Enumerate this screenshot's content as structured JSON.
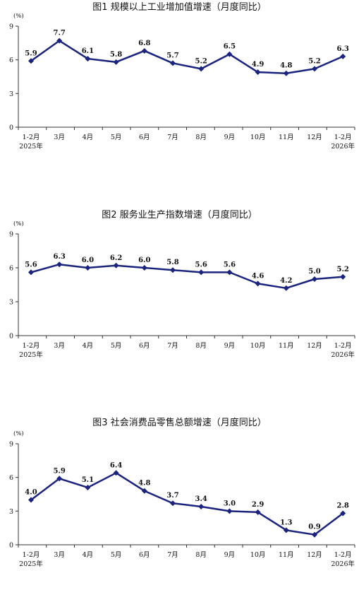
{
  "chart_data": [
    {
      "type": "line",
      "title": "图1   规模以上工业增加值增速（月度同比）",
      "ylabel": "(%)",
      "ylim": [
        0,
        9
      ],
      "yticks": [
        "0",
        "3",
        "6",
        "9"
      ],
      "categories": [
        "1-2月",
        "3月",
        "4月",
        "5月",
        "6月",
        "7月",
        "8月",
        "9月",
        "10月",
        "11月",
        "12月",
        "1-2月"
      ],
      "category_sublabels": [
        "2025年",
        "",
        "",
        "",
        "",
        "",
        "",
        "",
        "",
        "",
        "",
        "2026年"
      ],
      "values": [
        5.9,
        7.7,
        6.1,
        5.8,
        6.8,
        5.7,
        5.2,
        6.5,
        4.9,
        4.8,
        5.2,
        6.3
      ],
      "data_labels": [
        "5.9",
        "7.7",
        "6.1",
        "5.8",
        "6.8",
        "5.7",
        "5.2",
        "6.5",
        "4.9",
        "4.8",
        "5.2",
        "6.3"
      ],
      "grid": false,
      "line_color": "#1a237e"
    },
    {
      "type": "line",
      "title": "图2   服务业生产指数增速（月度同比）",
      "ylabel": "(%)",
      "ylim": [
        0,
        9
      ],
      "yticks": [
        "0",
        "3",
        "6",
        "9"
      ],
      "categories": [
        "1-2月",
        "3月",
        "4月",
        "5月",
        "6月",
        "7月",
        "8月",
        "9月",
        "10月",
        "11月",
        "12月",
        "1-2月"
      ],
      "category_sublabels": [
        "2025年",
        "",
        "",
        "",
        "",
        "",
        "",
        "",
        "",
        "",
        "",
        "2026年"
      ],
      "values": [
        5.6,
        6.3,
        6.0,
        6.2,
        6.0,
        5.8,
        5.6,
        5.6,
        4.6,
        4.2,
        5.0,
        5.2
      ],
      "data_labels": [
        "5.6",
        "6.3",
        "6.0",
        "6.2",
        "6.0",
        "5.8",
        "5.6",
        "5.6",
        "4.6",
        "4.2",
        "5.0",
        "5.2"
      ],
      "grid": false,
      "line_color": "#1a237e"
    },
    {
      "type": "line",
      "title": "图3   社会消费品零售总额增速（月度同比）",
      "ylabel": "(%)",
      "ylim": [
        0,
        9
      ],
      "yticks": [
        "0",
        "3",
        "6",
        "9"
      ],
      "categories": [
        "1-2月",
        "3月",
        "4月",
        "5月",
        "6月",
        "7月",
        "8月",
        "9月",
        "10月",
        "11月",
        "12月",
        "1-2月"
      ],
      "category_sublabels": [
        "2025年",
        "",
        "",
        "",
        "",
        "",
        "",
        "",
        "",
        "",
        "",
        "2026年"
      ],
      "values": [
        4.0,
        5.9,
        5.1,
        6.4,
        4.8,
        3.7,
        3.4,
        3.0,
        2.9,
        1.3,
        0.9,
        2.8
      ],
      "data_labels": [
        "4.0",
        "5.9",
        "5.1",
        "6.4",
        "4.8",
        "3.7",
        "3.4",
        "3.0",
        "2.9",
        "1.3",
        "0.9",
        "2.8"
      ],
      "grid": false,
      "line_color": "#1a237e"
    }
  ]
}
